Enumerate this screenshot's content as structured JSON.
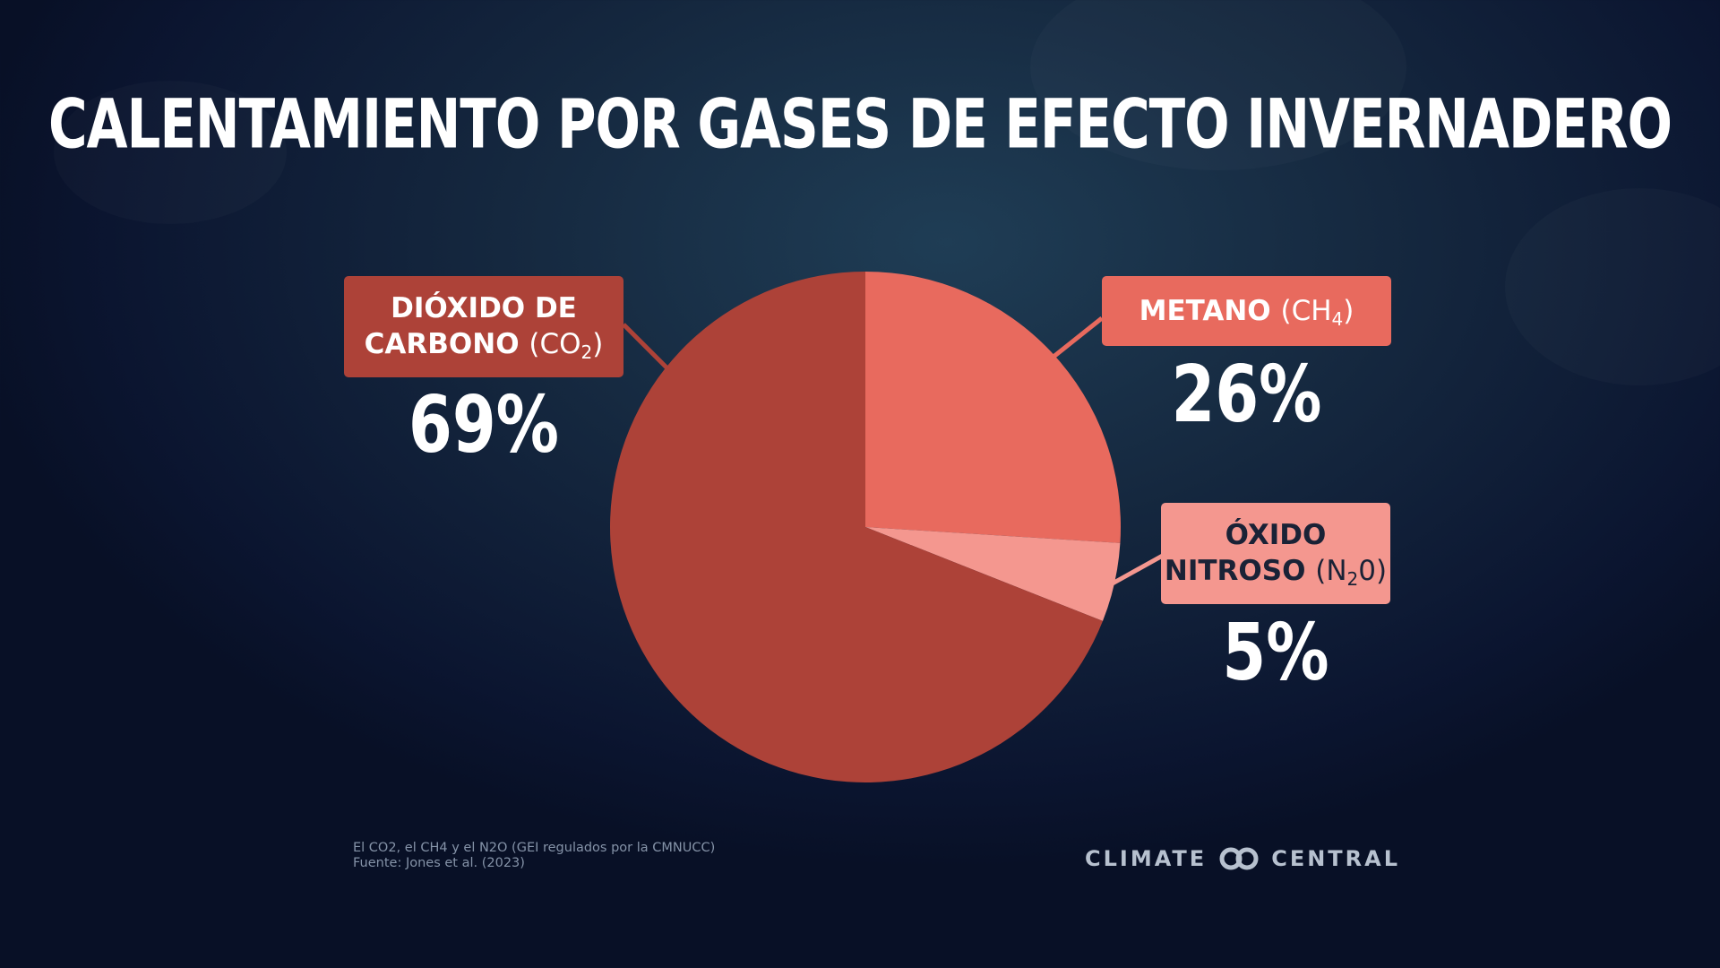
{
  "chart_data": {
    "type": "pie",
    "title": "CALENTAMIENTO POR GASES DE EFECTO INVERNADERO",
    "slices": [
      {
        "name": "DIÓXIDO DE CARBONO",
        "formula_base": "(CO",
        "formula_sub": "2",
        "formula_end": ")",
        "value": 69,
        "label": "69%",
        "color": "#ad4238"
      },
      {
        "name": "METANO",
        "formula_base": "(CH",
        "formula_sub": "4",
        "formula_end": ")",
        "value": 26,
        "label": "26%",
        "color": "#e86a5e"
      },
      {
        "name": "ÓXIDO NITROSO",
        "formula_base": "(N",
        "formula_sub": "2",
        "formula_end": "0)",
        "value": 5,
        "label": "5%",
        "color": "#f4978f"
      }
    ]
  },
  "labels": {
    "co2_line1": "DIÓXIDO DE",
    "co2_line2": "CARBONO",
    "n2o_line1": "ÓXIDO",
    "n2o_line2": "NITROSO"
  },
  "footnote": {
    "line1": "El CO2, el CH4 y el N2O (GEI regulados por la CMNUCC)",
    "line2": "Fuente: Jones et al. (2023)"
  },
  "logo": {
    "left": "CLIMATE",
    "right": "CENTRAL"
  }
}
